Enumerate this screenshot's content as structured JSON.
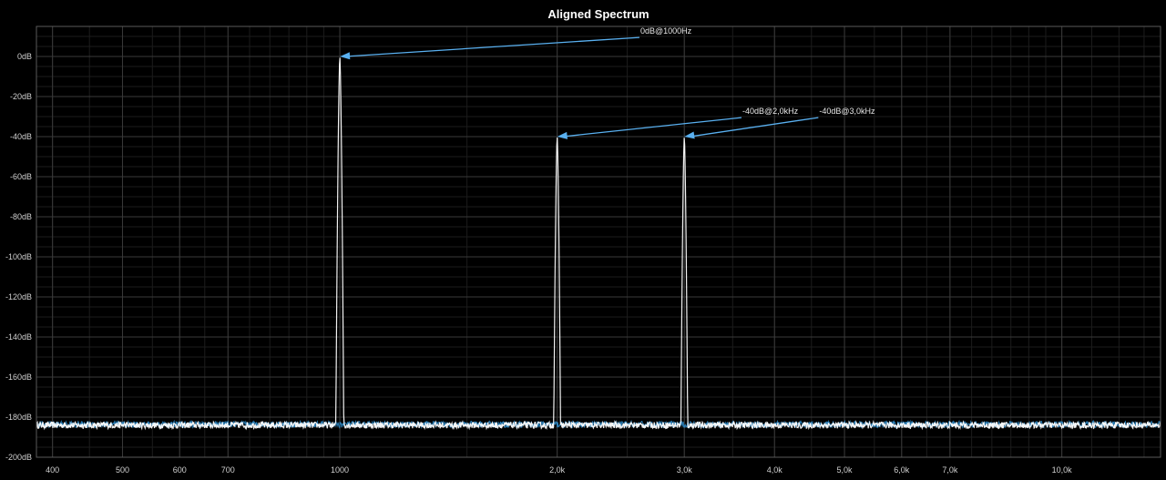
{
  "chart_data": {
    "type": "line",
    "title": "Aligned Spectrum",
    "xlabel": "",
    "ylabel": "",
    "xscale": "log",
    "xlim": [
      380,
      13700
    ],
    "ylim": [
      -200,
      15
    ],
    "grid": true,
    "y_ticks": [
      {
        "value": 0,
        "label": "0dB"
      },
      {
        "value": -20,
        "label": "-20dB"
      },
      {
        "value": -40,
        "label": "-40dB"
      },
      {
        "value": -60,
        "label": "-60dB"
      },
      {
        "value": -80,
        "label": "-80dB"
      },
      {
        "value": -100,
        "label": "-100dB"
      },
      {
        "value": -120,
        "label": "-120dB"
      },
      {
        "value": -140,
        "label": "-140dB"
      },
      {
        "value": -160,
        "label": "-160dB"
      },
      {
        "value": -180,
        "label": "-180dB"
      },
      {
        "value": -200,
        "label": "-200dB"
      }
    ],
    "x_ticks": [
      {
        "value": 400,
        "label": "400"
      },
      {
        "value": 500,
        "label": "500"
      },
      {
        "value": 600,
        "label": "600"
      },
      {
        "value": 700,
        "label": "700"
      },
      {
        "value": 1000,
        "label": "1000"
      },
      {
        "value": 2000,
        "label": "2,0k"
      },
      {
        "value": 3000,
        "label": "3,0k"
      },
      {
        "value": 4000,
        "label": "4,0k"
      },
      {
        "value": 5000,
        "label": "5,0k"
      },
      {
        "value": 6000,
        "label": "6,0k"
      },
      {
        "value": 7000,
        "label": "7,0k"
      },
      {
        "value": 10000,
        "label": "10,0k"
      }
    ],
    "noise_floor_db": -184,
    "series": [
      {
        "color": "#ffffff",
        "peaks": [
          {
            "freq": 1000,
            "db": 0
          },
          {
            "freq": 2000,
            "db": -40
          },
          {
            "freq": 3000,
            "db": -40
          }
        ]
      },
      {
        "color": "#2f8fd0",
        "peaks": []
      }
    ],
    "annotations": [
      {
        "text": "0dB@1000Hz",
        "freq": 1000,
        "db": 0,
        "label_freq": 2600,
        "label_db": 9.5
      },
      {
        "text": "-40dB@2,0kHz",
        "freq": 2000,
        "db": -40,
        "label_freq": 3600,
        "label_db": -30.5
      },
      {
        "text": "-40dB@3,0kHz",
        "freq": 3000,
        "db": -40,
        "label_freq": 4600,
        "label_db": -30.5
      }
    ],
    "colors": {
      "background": "#000000",
      "annotation_arrow": "#59b0f0"
    }
  }
}
